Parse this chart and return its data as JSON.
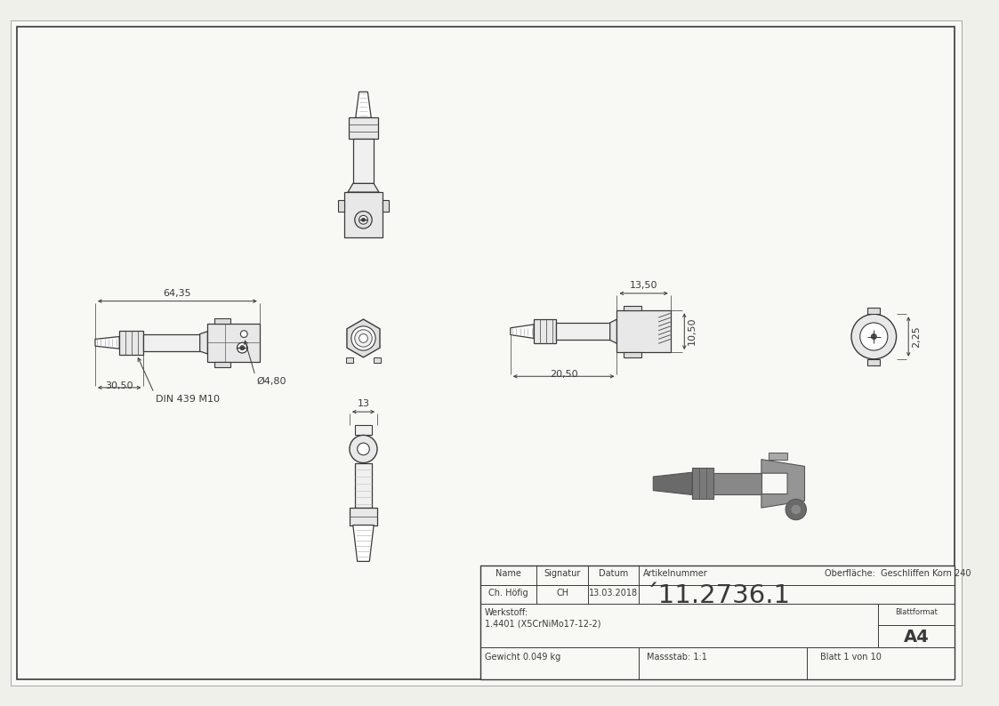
{
  "bg_color": "#f0f0eb",
  "paper_color": "#f8f8f4",
  "line_color": "#3a3a3a",
  "dim_color": "#3a3a3a",
  "thin_line": "#5a5a5a",
  "hatch_color": "#888888",
  "article_number": "´11.2736.1",
  "oberflaeche": "Oberfläche:  Geschliffen Korn 240",
  "werkstoff_label": "Werkstoff:",
  "material": "1.4401 (X5CrNiMo17-12-2)",
  "gewicht": "Gewicht 0.049 kg",
  "massstab": "Massstab: 1:1",
  "blatt": "Blatt 1 von 10",
  "blattformat_label": "Blattformat",
  "blattformat_val": "A4",
  "name_label": "Name",
  "signatur_label": "Signatur",
  "datum_label": "Datum",
  "artikel_label": "Artikelnummer",
  "name_val": "Ch. Höfig",
  "signatur_val": "CH",
  "datum_val": "13.03.2018",
  "dim_64_35": "64,35",
  "dim_30_50": "30,50",
  "dim_4_80": "Ø4,80",
  "dim_din": "DIN 439 M10",
  "dim_13_50": "13,50",
  "dim_10_50": "10,50",
  "dim_20_50": "20,50",
  "dim_13": "13",
  "dim_2_25": "2,25"
}
